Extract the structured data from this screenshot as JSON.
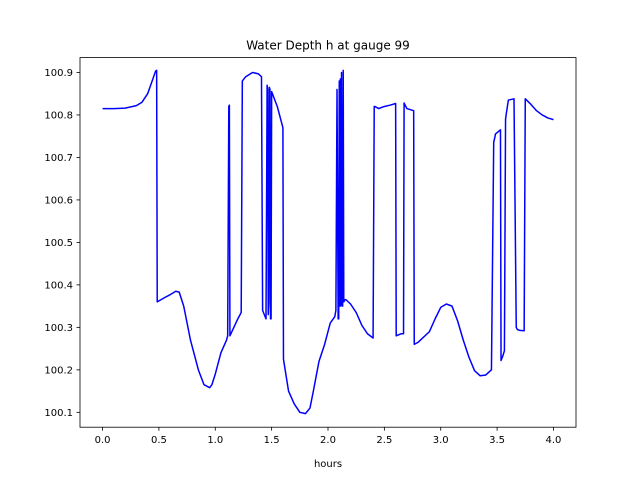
{
  "chart_data": {
    "type": "line",
    "title": "Water Depth h at gauge 99",
    "xlabel": "hours",
    "ylabel": "",
    "xlim": [
      -0.2,
      4.2
    ],
    "ylim": [
      100.065,
      100.935
    ],
    "xticks": [
      0.0,
      0.5,
      1.0,
      1.5,
      2.0,
      2.5,
      3.0,
      3.5,
      4.0
    ],
    "xtick_labels": [
      "0.0",
      "0.5",
      "1.0",
      "1.5",
      "2.0",
      "2.5",
      "3.0",
      "3.5",
      "4.0"
    ],
    "yticks": [
      100.1,
      100.2,
      100.3,
      100.4,
      100.5,
      100.6,
      100.7,
      100.8,
      100.9
    ],
    "ytick_labels": [
      "100.1",
      "100.2",
      "100.3",
      "100.4",
      "100.5",
      "100.6",
      "100.7",
      "100.8",
      "100.9"
    ],
    "grid": false,
    "series": [
      {
        "color": "#0000ff",
        "x": [
          0.0,
          0.1,
          0.2,
          0.3,
          0.35,
          0.4,
          0.44,
          0.47,
          0.48,
          0.485,
          0.55,
          0.6,
          0.65,
          0.68,
          0.72,
          0.78,
          0.85,
          0.9,
          0.95,
          0.97,
          1.0,
          1.05,
          1.1,
          1.11,
          1.12,
          1.125,
          1.13,
          1.2,
          1.23,
          1.24,
          1.27,
          1.33,
          1.38,
          1.41,
          1.42,
          1.45,
          1.46,
          1.465,
          1.47,
          1.475,
          1.48,
          1.485,
          1.49,
          1.495,
          1.5,
          1.55,
          1.6,
          1.605,
          1.65,
          1.7,
          1.75,
          1.8,
          1.84,
          1.87,
          1.92,
          1.97,
          2.02,
          2.06,
          2.07,
          2.08,
          2.09,
          2.095,
          2.1,
          2.105,
          2.11,
          2.115,
          2.12,
          2.125,
          2.13,
          2.135,
          2.14,
          2.15,
          2.16,
          2.2,
          2.25,
          2.3,
          2.35,
          2.4,
          2.41,
          2.415,
          2.45,
          2.5,
          2.55,
          2.6,
          2.605,
          2.65,
          2.67,
          2.675,
          2.7,
          2.76,
          2.765,
          2.8,
          2.9,
          2.95,
          3.0,
          3.05,
          3.1,
          3.15,
          3.2,
          3.25,
          3.3,
          3.35,
          3.4,
          3.45,
          3.47,
          3.48,
          3.485,
          3.53,
          3.535,
          3.55,
          3.565,
          3.575,
          3.58,
          3.6,
          3.65,
          3.67,
          3.68,
          3.7,
          3.74,
          3.75,
          3.8,
          3.85,
          3.9,
          3.95,
          4.0
        ],
        "y": [
          100.815,
          100.815,
          100.816,
          100.822,
          100.83,
          100.85,
          100.88,
          100.903,
          100.905,
          100.36,
          100.37,
          100.377,
          100.385,
          100.383,
          100.35,
          100.27,
          100.2,
          100.165,
          100.158,
          100.165,
          100.19,
          100.24,
          100.27,
          100.28,
          100.82,
          100.823,
          100.28,
          100.32,
          100.335,
          100.88,
          100.89,
          100.9,
          100.897,
          100.89,
          100.34,
          100.32,
          100.87,
          100.86,
          100.33,
          100.36,
          100.865,
          100.86,
          100.32,
          100.32,
          100.855,
          100.82,
          100.77,
          100.225,
          100.15,
          100.12,
          100.1,
          100.097,
          100.11,
          100.15,
          100.22,
          100.26,
          100.31,
          100.325,
          100.34,
          100.86,
          100.32,
          100.32,
          100.88,
          100.35,
          100.885,
          100.35,
          100.9,
          100.36,
          100.35,
          100.905,
          100.36,
          100.365,
          100.365,
          100.355,
          100.335,
          100.305,
          100.285,
          100.275,
          100.82,
          100.82,
          100.815,
          100.82,
          100.823,
          100.827,
          100.28,
          100.285,
          100.285,
          100.828,
          100.815,
          100.81,
          100.26,
          100.265,
          100.29,
          100.32,
          100.347,
          100.355,
          100.35,
          100.315,
          100.27,
          100.23,
          100.198,
          100.186,
          100.188,
          100.2,
          100.736,
          100.747,
          100.755,
          100.765,
          100.222,
          100.232,
          100.245,
          100.79,
          100.8,
          100.835,
          100.838,
          100.3,
          100.295,
          100.293,
          100.292,
          100.838,
          100.825,
          100.81,
          100.8,
          100.793,
          100.789
        ]
      }
    ]
  }
}
